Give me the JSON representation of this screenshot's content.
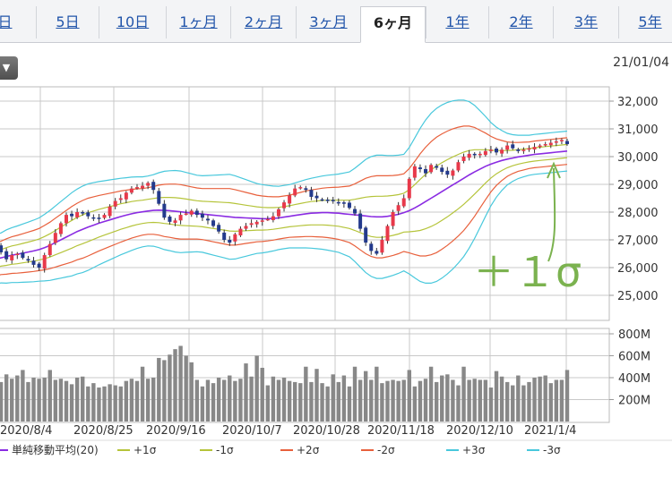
{
  "tabs": [
    {
      "label": "日",
      "active": false
    },
    {
      "label": "5日",
      "active": false
    },
    {
      "label": "10日",
      "active": false
    },
    {
      "label": "1ヶ月",
      "active": false
    },
    {
      "label": "2ヶ月",
      "active": false
    },
    {
      "label": "3ヶ月",
      "active": false
    },
    {
      "label": "6ヶ月",
      "active": true
    },
    {
      "label": "1年",
      "active": false
    },
    {
      "label": "2年",
      "active": false
    },
    {
      "label": "3年",
      "active": false
    },
    {
      "label": "5年",
      "active": false
    }
  ],
  "dropdown_icon": "triangle-down",
  "date_label": "21/01/04",
  "annotation": "＋１σ",
  "colors": {
    "up": "#e8394a",
    "down": "#233a8c",
    "sma": "#8a2be2",
    "s1": "#b5c43a",
    "s2": "#e8603c",
    "s3": "#48c8dc",
    "volume": "#888888",
    "annotation": "#7bb24f"
  },
  "chart_data": [
    {
      "type": "candlestick",
      "title": "",
      "price_ticks": [
        "32,000",
        "31,000",
        "30,000",
        "29,000",
        "28,000",
        "27,000",
        "26,000",
        "25,000"
      ],
      "ylim": [
        24500,
        32500
      ],
      "x_ticks": [
        "2020/8/4",
        "2020/8/25",
        "2020/9/16",
        "2020/10/7",
        "2020/10/28",
        "2020/11/18",
        "2020/12/10",
        "2021/1/4"
      ],
      "grid": true,
      "close": [
        26800,
        26550,
        26300,
        26450,
        26500,
        26350,
        26250,
        26100,
        26000,
        26450,
        26850,
        27250,
        27600,
        27900,
        27850,
        28000,
        27950,
        27850,
        27800,
        27750,
        27900,
        28200,
        28400,
        28500,
        28700,
        28850,
        28900,
        28950,
        29050,
        28800,
        28300,
        27800,
        27650,
        27700,
        27900,
        27950,
        28050,
        27900,
        27800,
        27700,
        27500,
        27300,
        27000,
        26900,
        27200,
        27400,
        27500,
        27600,
        27650,
        27700,
        27750,
        27850,
        28100,
        28350,
        28600,
        28850,
        28900,
        28800,
        28550,
        28500,
        28450,
        28400,
        28400,
        28350,
        28300,
        28150,
        27950,
        27400,
        26900,
        26600,
        26500,
        27000,
        27500,
        28000,
        28250,
        28500,
        29200,
        29650,
        29550,
        29400,
        29700,
        29600,
        29450,
        29350,
        29500,
        29800,
        30000,
        30100,
        30050,
        30100,
        30200,
        30250,
        30150,
        30250,
        30400,
        30300,
        30200,
        30250,
        30300,
        30350,
        30400,
        30450,
        30500,
        30550,
        30600,
        30450
      ],
      "sma20": [
        26300,
        26350,
        26400,
        26450,
        26480,
        26520,
        26560,
        26600,
        26650,
        26720,
        26800,
        26900,
        27000,
        27100,
        27200,
        27300,
        27380,
        27460,
        27530,
        27600,
        27660,
        27720,
        27780,
        27840,
        27890,
        27940,
        27980,
        28010,
        28040,
        28060,
        28070,
        28060,
        28050,
        28030,
        28010,
        27990,
        27970,
        27950,
        27930,
        27910,
        27890,
        27870,
        27850,
        27830,
        27810,
        27800,
        27790,
        27780,
        27770,
        27760,
        27760,
        27770,
        27790,
        27820,
        27850,
        27880,
        27910,
        27940,
        27960,
        27970,
        27980,
        27980,
        27970,
        27960,
        27940,
        27920,
        27900,
        27880,
        27860,
        27840,
        27830,
        27830,
        27850,
        27880,
        27920,
        27980,
        28050,
        28150,
        28260,
        28380,
        28500,
        28620,
        28740,
        28860,
        28980,
        29100,
        29220,
        29340,
        29450,
        29550,
        29650,
        29730,
        29800,
        29860,
        29910,
        29950,
        29990,
        30020,
        30050,
        30080,
        30100,
        30120,
        30140,
        30160,
        30180,
        30200
      ],
      "sigma": [
        300,
        300,
        320,
        330,
        340,
        350,
        360,
        370,
        380,
        400,
        420,
        440,
        460,
        480,
        500,
        510,
        520,
        520,
        510,
        500,
        490,
        480,
        470,
        460,
        450,
        440,
        430,
        420,
        420,
        430,
        450,
        470,
        480,
        490,
        490,
        480,
        470,
        460,
        460,
        470,
        480,
        490,
        500,
        510,
        500,
        480,
        460,
        440,
        420,
        410,
        400,
        390,
        380,
        380,
        380,
        390,
        400,
        410,
        420,
        430,
        440,
        450,
        460,
        470,
        490,
        510,
        560,
        620,
        680,
        720,
        740,
        740,
        730,
        720,
        710,
        700,
        760,
        840,
        920,
        980,
        1020,
        1040,
        1040,
        1030,
        1010,
        980,
        940,
        880,
        800,
        700,
        600,
        500,
        420,
        360,
        310,
        280,
        260,
        250,
        240,
        240,
        240,
        240,
        240,
        240,
        240,
        240
      ],
      "volume_ticks": [
        "800M",
        "600M",
        "400M",
        "200M"
      ],
      "volume_ylim": [
        0,
        800
      ],
      "volume": [
        430,
        360,
        430,
        390,
        420,
        470,
        360,
        400,
        390,
        400,
        470,
        380,
        390,
        370,
        340,
        400,
        410,
        320,
        350,
        310,
        320,
        340,
        330,
        320,
        370,
        390,
        370,
        500,
        390,
        400,
        580,
        560,
        610,
        660,
        690,
        600,
        540,
        380,
        320,
        380,
        350,
        400,
        380,
        420,
        370,
        390,
        530,
        410,
        600,
        490,
        330,
        410,
        380,
        400,
        370,
        360,
        350,
        500,
        360,
        480,
        350,
        320,
        430,
        360,
        420,
        320,
        500,
        380,
        460,
        380,
        500,
        350,
        370,
        380,
        370,
        380,
        470,
        320,
        370,
        390,
        500,
        360,
        420,
        430,
        380,
        330,
        500,
        380,
        390,
        380,
        380,
        310,
        460,
        410,
        360,
        330,
        420,
        330,
        360,
        400,
        410,
        420,
        350,
        380,
        380,
        470
      ]
    }
  ],
  "legend": [
    "単純移動平均(20)",
    "+1σ",
    "-1σ",
    "+2σ",
    "-2σ",
    "+3σ",
    "-3σ"
  ]
}
